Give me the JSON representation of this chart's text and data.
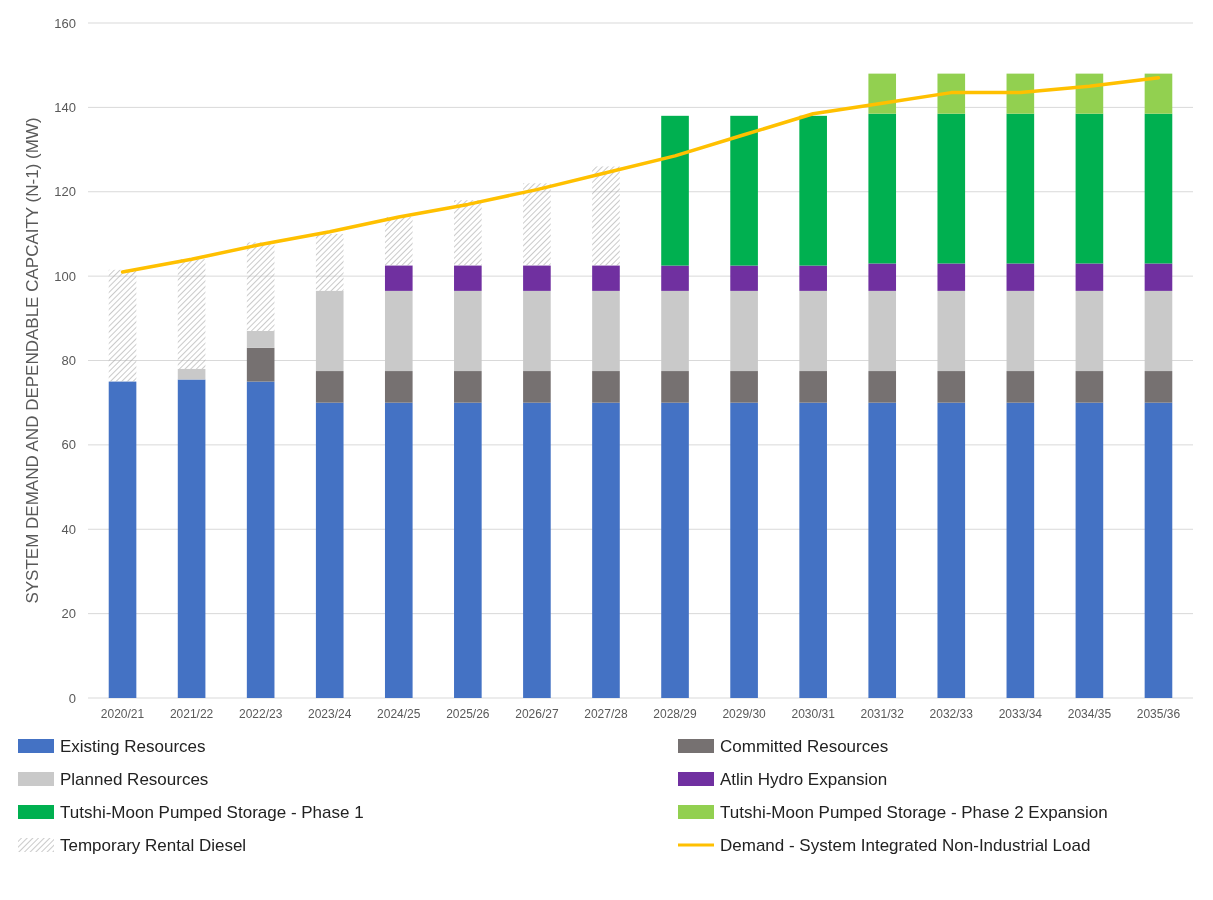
{
  "chart_data": {
    "type": "bar",
    "stacked": true,
    "ylabel": "SYSTEM DEMAND AND DEPENDABLE CAPCAITY (N-1) (MW)",
    "categories": [
      "2020/21",
      "2021/22",
      "2022/23",
      "2023/24",
      "2024/25",
      "2025/26",
      "2026/27",
      "2027/28",
      "2028/29",
      "2029/30",
      "2030/31",
      "2031/32",
      "2032/33",
      "2033/34",
      "2034/35",
      "2035/36"
    ],
    "series": [
      {
        "name": "Existing Resources",
        "color": "#4472c4",
        "values": [
          75,
          75.5,
          75,
          70,
          70,
          70,
          70,
          70,
          70,
          70,
          70,
          70,
          70,
          70,
          70,
          70
        ]
      },
      {
        "name": "Committed Resources",
        "color": "#767171",
        "values": [
          0,
          0,
          8,
          7.5,
          7.5,
          7.5,
          7.5,
          7.5,
          7.5,
          7.5,
          7.5,
          7.5,
          7.5,
          7.5,
          7.5,
          7.5
        ]
      },
      {
        "name": "Planned Resources",
        "color": "#c9c9c9",
        "values": [
          0,
          2.5,
          4,
          19,
          19,
          19,
          19,
          19,
          19,
          19,
          19,
          19,
          19,
          19,
          19,
          19
        ]
      },
      {
        "name": "Atlin Hydro Expansion",
        "color": "#7030a0",
        "values": [
          0,
          0,
          0,
          0,
          6,
          6,
          6,
          6,
          6,
          6,
          6,
          6.5,
          6.5,
          6.5,
          6.5,
          6.5
        ]
      },
      {
        "name": "Tutshi-Moon Pumped Storage - Phase 1",
        "color": "#00b050",
        "values": [
          0,
          0,
          0,
          0,
          0,
          0,
          0,
          0,
          35.5,
          35.5,
          35.5,
          35.5,
          35.5,
          35.5,
          35.5,
          35.5
        ]
      },
      {
        "name": "Tutshi-Moon Pumped Storage - Phase 2 Expansion",
        "color": "#92d050",
        "values": [
          0,
          0,
          0,
          0,
          0,
          0,
          0,
          0,
          0,
          0,
          0,
          9.5,
          9.5,
          9.5,
          9.5,
          9.5
        ]
      },
      {
        "name": "Temporary Rental Diesel",
        "color": "#a6a6a6",
        "values": [
          26.5,
          26,
          21,
          13.5,
          11.5,
          15.5,
          19.5,
          23.5,
          0,
          0,
          0,
          0,
          0,
          0,
          0,
          0
        ]
      },
      {
        "name": "Demand - System Integrated Non-Industrial Load",
        "type": "line",
        "color": "#ffc000",
        "values": [
          101,
          104,
          107.5,
          110.5,
          114,
          117,
          120.5,
          124.5,
          128.5,
          133.5,
          138.5,
          141,
          143.5,
          143.5,
          145,
          147
        ]
      }
    ],
    "ylim": [
      0,
      160
    ],
    "yticks": [
      0,
      20,
      40,
      60,
      80,
      100,
      120,
      140,
      160
    ],
    "grid": "y",
    "legend": "bottom"
  }
}
